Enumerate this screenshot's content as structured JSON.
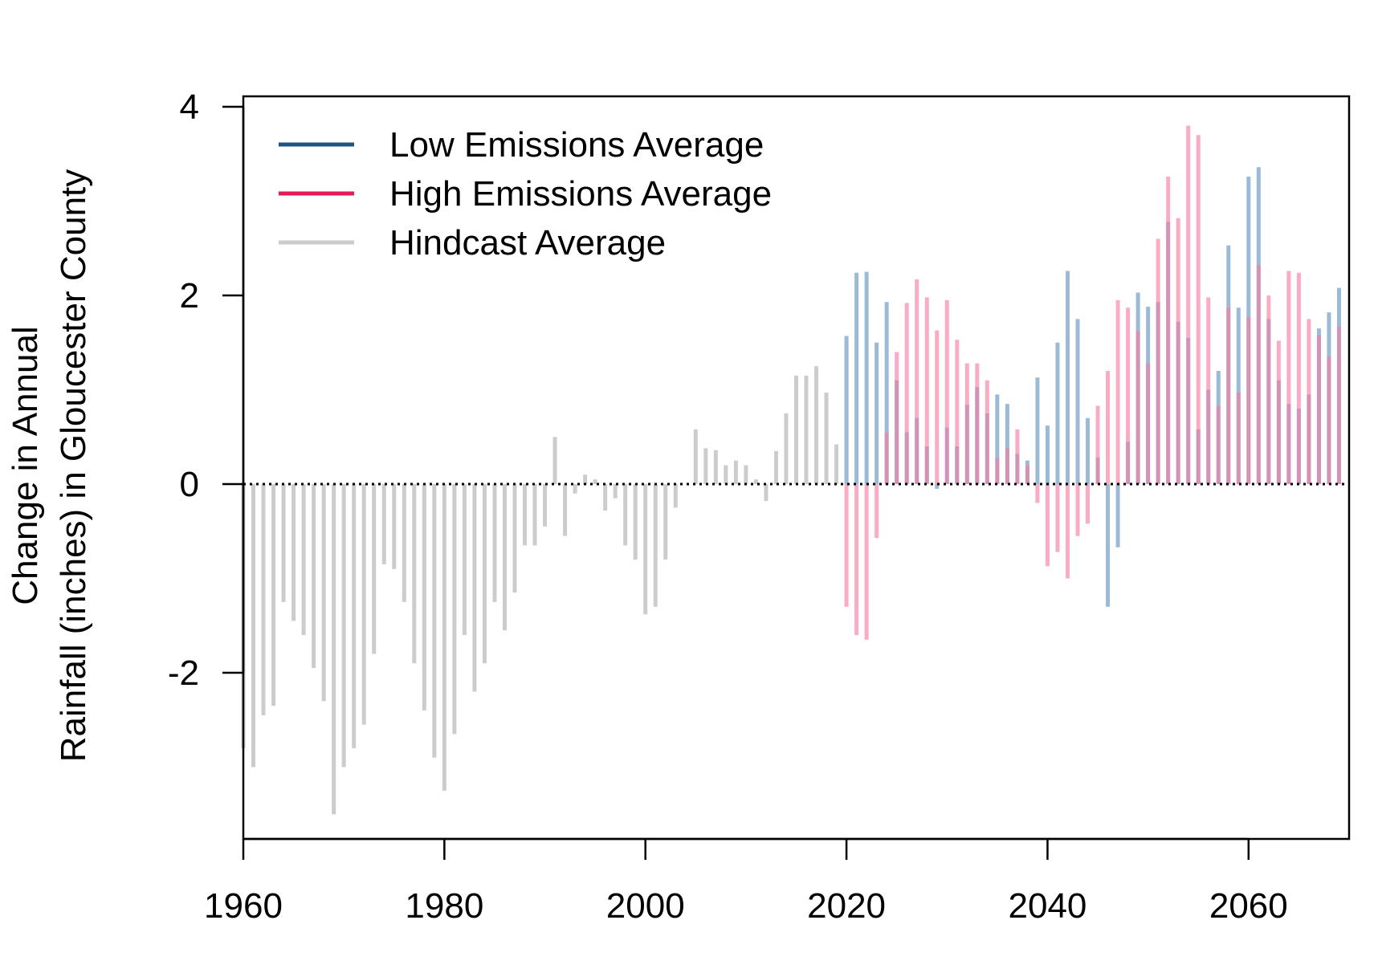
{
  "chart_data": {
    "type": "bar",
    "title": "",
    "xlabel": "",
    "ylabel_lines": [
      "Change in Annual",
      "Rainfall (inches) in Gloucester County"
    ],
    "xlim": [
      1960,
      2070
    ],
    "ylim": [
      -3.6,
      4.0
    ],
    "x_ticks": [
      "1960",
      "1980",
      "2000",
      "2020",
      "2040",
      "2060"
    ],
    "y_ticks": [
      "-2",
      "0",
      "2",
      "4"
    ],
    "zero_line": "dotted",
    "grid": false,
    "legend_position": "top-left",
    "legend": [
      {
        "label": "Low Emissions Average",
        "color": "#1f5583"
      },
      {
        "label": "High Emissions Average",
        "color": "#e8195a"
      },
      {
        "label": "Hindcast Average",
        "color": "#cccccc"
      }
    ],
    "series": [
      {
        "name": "Hindcast Average",
        "color": "#cccccc",
        "start_year": 1960,
        "values": [
          -2.8,
          -3.0,
          -2.45,
          -2.35,
          -1.25,
          -1.45,
          -1.6,
          -1.95,
          -2.3,
          -3.5,
          -3.0,
          -2.8,
          -2.55,
          -1.8,
          -0.85,
          -0.9,
          -1.25,
          -1.9,
          -2.4,
          -2.9,
          -3.25,
          -2.65,
          -1.6,
          -2.2,
          -1.9,
          -1.25,
          -1.55,
          -1.15,
          -0.65,
          -0.65,
          -0.45,
          0.5,
          -0.55,
          -0.1,
          0.1,
          0.05,
          -0.28,
          -0.15,
          -0.65,
          -0.8,
          -1.38,
          -1.3,
          -0.8,
          -0.25,
          0.0,
          0.58,
          0.38,
          0.36,
          0.2,
          0.25,
          0.2,
          0.05,
          -0.18,
          0.35,
          0.75,
          1.15,
          1.15,
          1.25,
          0.97,
          0.42
        ]
      },
      {
        "name": "Low Emissions Average",
        "color": "#7aa3c7",
        "start_year": 2020,
        "values": [
          1.57,
          2.24,
          2.25,
          1.5,
          1.93,
          1.1,
          0.55,
          0.7,
          0.4,
          -0.05,
          0.6,
          0.4,
          0.84,
          1.03,
          0.75,
          0.95,
          0.85,
          0.32,
          0.25,
          1.13,
          0.62,
          1.5,
          2.26,
          1.75,
          0.7,
          0.28,
          -1.3,
          -0.67,
          0.45,
          2.03,
          1.88,
          1.93,
          2.78,
          1.72,
          1.55,
          0.58,
          1.0,
          1.2,
          2.53,
          1.87,
          3.26,
          3.36,
          1.75,
          1.1,
          0.85,
          0.8,
          0.95,
          1.65,
          1.82,
          2.08
        ]
      },
      {
        "name": "High Emissions Average",
        "color": "#f7799f",
        "start_year": 2020,
        "values": [
          -1.3,
          -1.6,
          -1.65,
          -0.57,
          0.55,
          1.4,
          1.92,
          2.17,
          1.98,
          1.63,
          1.95,
          1.53,
          1.28,
          1.28,
          1.1,
          0.28,
          0.38,
          0.58,
          0.2,
          -0.2,
          -0.87,
          -0.72,
          -1.0,
          -0.55,
          -0.42,
          0.83,
          1.2,
          1.95,
          1.87,
          1.62,
          1.28,
          2.6,
          3.26,
          2.82,
          3.8,
          3.7,
          1.98,
          0.83,
          1.87,
          0.97,
          1.77,
          2.32,
          2.0,
          1.52,
          2.26,
          2.24,
          1.75,
          1.58,
          1.35,
          1.67
        ]
      }
    ]
  }
}
